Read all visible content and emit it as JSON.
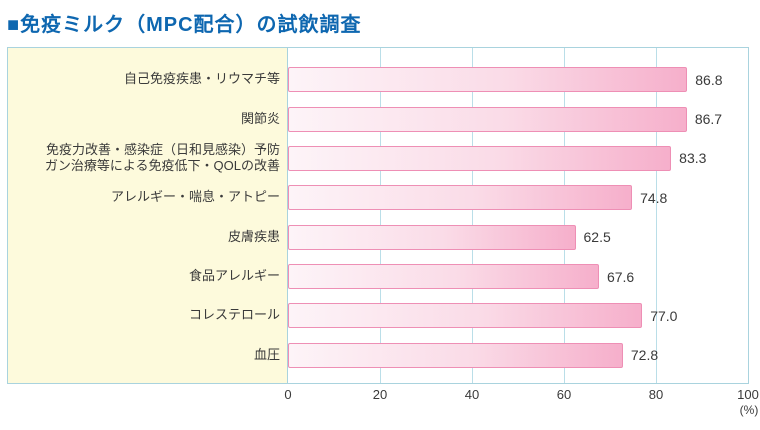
{
  "title": "■免疫ミルク（MPC配合）の試飲調査",
  "chart_data": {
    "type": "bar",
    "orientation": "horizontal",
    "title": "免疫ミルク（MPC配合）の試飲調査",
    "categories": [
      "自己免疫疾患・リウマチ等",
      "関節炎",
      "免疫力改善・感染症（日和見感染）予防\nガン治療等による免疫低下・QOLの改善",
      "アレルギー・喘息・アトピー",
      "皮膚疾患",
      "食品アレルギー",
      "コレステロール",
      "血圧"
    ],
    "values": [
      86.8,
      86.7,
      83.3,
      74.8,
      62.5,
      67.6,
      77.0,
      72.8
    ],
    "value_labels": [
      "86.8",
      "86.7",
      "83.3",
      "74.8",
      "62.5",
      "67.6",
      "77.0",
      "72.8"
    ],
    "xlim": [
      0,
      100
    ],
    "xticks": [
      0,
      20,
      40,
      60,
      80,
      100
    ],
    "x_unit": "(%)",
    "grid": true,
    "legend": false
  },
  "colors": {
    "title_text": "#0e67b0",
    "box_border": "#a9d3de",
    "label_panel_bg": "#fdfadc",
    "gridline": "#badee8",
    "bar_border": "#ee8fb5",
    "bar_grad_start": "#fdf4f8",
    "bar_grad_mid": "#fadbe7",
    "bar_grad_end": "#f6afcb",
    "text": "#3a3a3a"
  }
}
